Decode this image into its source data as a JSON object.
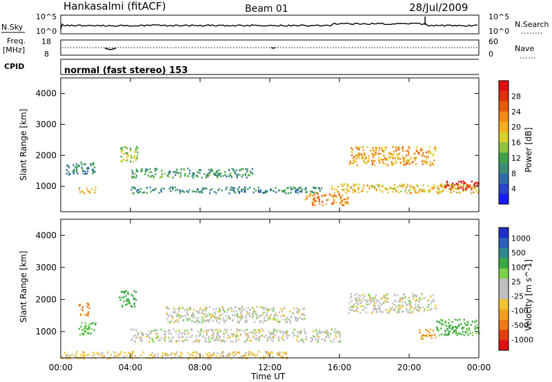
{
  "header": {
    "station": "Hankasalmi (fitACF)",
    "beam": "Beam 01",
    "date": "28/Jul/2009"
  },
  "noise_panel": {
    "left_label": "N.Sky",
    "right_label": "N.Search",
    "left_ticks": [
      "10^5",
      "10^0"
    ],
    "right_ticks": [
      "10^5",
      "10^0"
    ]
  },
  "freq_panel": {
    "left_label_1": "Freq.",
    "left_label_2": "[MHz]",
    "left_ticks": [
      "18",
      "8"
    ],
    "right_label": "Nave",
    "right_ticks": [
      "60",
      "0"
    ]
  },
  "cpid": {
    "label": "CPID",
    "mode": "normal (fast stereo) 153"
  },
  "x_axis": {
    "label": "Time UT",
    "ticks": [
      "00:00",
      "04:00",
      "08:00",
      "12:00",
      "16:00",
      "20:00",
      "00:00"
    ]
  },
  "chart_data": [
    {
      "type": "heatmap",
      "panel": "power",
      "ylabel": "Slant Range [km]",
      "yticks": [
        1000,
        2000,
        3000,
        4000
      ],
      "ylim": [
        180,
        4500
      ],
      "xlim_hours": [
        0,
        24
      ],
      "colorbar": {
        "label": "Power [dB]",
        "ticks": [
          "4",
          "8",
          "12",
          "16",
          "20",
          "24",
          "28"
        ],
        "colors": [
          "#1b1bff",
          "#2a43c8",
          "#2f6fa6",
          "#3a8c74",
          "#3fa24a",
          "#8fc23d",
          "#d8d02a",
          "#f5b01e",
          "#f08a14",
          "#e65a10",
          "#e03010",
          "#e01010"
        ]
      },
      "echo_regions": [
        {
          "t_start": 0.3,
          "t_end": 2.0,
          "range_km": [
            1400,
            1800
          ],
          "power_db": 8
        },
        {
          "t_start": 1.0,
          "t_end": 2.0,
          "range_km": [
            800,
            1000
          ],
          "power_db": 18
        },
        {
          "t_start": 3.3,
          "t_end": 4.4,
          "range_km": [
            1800,
            2300
          ],
          "power_db": 14
        },
        {
          "t_start": 4.0,
          "t_end": 11.0,
          "range_km": [
            1300,
            1600
          ],
          "power_db": 10
        },
        {
          "t_start": 4.0,
          "t_end": 15.0,
          "range_km": [
            800,
            1000
          ],
          "power_db": 8
        },
        {
          "t_start": 14.0,
          "t_end": 16.5,
          "range_km": [
            400,
            800
          ],
          "power_db": 22
        },
        {
          "t_start": 15.5,
          "t_end": 24.0,
          "range_km": [
            800,
            1100
          ],
          "power_db": 18
        },
        {
          "t_start": 16.5,
          "t_end": 21.5,
          "range_km": [
            1700,
            2300
          ],
          "power_db": 20
        },
        {
          "t_start": 22.0,
          "t_end": 24.0,
          "range_km": [
            900,
            1200
          ],
          "power_db": 28
        }
      ]
    },
    {
      "type": "heatmap",
      "panel": "velocity",
      "ylabel": "Slant Range [km]",
      "yticks": [
        1000,
        2000,
        3000,
        4000
      ],
      "ylim": [
        180,
        4500
      ],
      "xlim_hours": [
        0,
        24
      ],
      "colorbar": {
        "label": "Velocity [m s^-1]",
        "ticks": [
          "1000",
          "500",
          "100",
          "25",
          "-25",
          "-100",
          "-500",
          "-1000"
        ],
        "colors": [
          "#2030c8",
          "#2a60b8",
          "#2f8a90",
          "#3aaa40",
          "#7ad04a",
          "#bfbfbf",
          "#bfbfbf",
          "#f2c430",
          "#f0a020",
          "#ee7a18",
          "#e04010",
          "#e01010"
        ]
      },
      "echo_regions": [
        {
          "t_start": 1.0,
          "t_end": 2.0,
          "range_km": [
            900,
            1300
          ],
          "velocity": 150
        },
        {
          "t_start": 1.0,
          "t_end": 1.6,
          "range_km": [
            1500,
            1900
          ],
          "velocity": -300
        },
        {
          "t_start": 3.3,
          "t_end": 4.3,
          "range_km": [
            1800,
            2300
          ],
          "velocity": 200
        },
        {
          "t_start": 4.0,
          "t_end": 16.0,
          "range_km": [
            700,
            1100
          ],
          "velocity": 0
        },
        {
          "t_start": 6.0,
          "t_end": 14.0,
          "range_km": [
            1300,
            1800
          ],
          "velocity": 0
        },
        {
          "t_start": 16.5,
          "t_end": 21.5,
          "range_km": [
            1600,
            2200
          ],
          "velocity": 0
        },
        {
          "t_start": 21.5,
          "t_end": 24.0,
          "range_km": [
            900,
            1400
          ],
          "velocity": 150
        },
        {
          "t_start": 20.5,
          "t_end": 21.5,
          "range_km": [
            800,
            1100
          ],
          "velocity": -200
        },
        {
          "t_start": 0.0,
          "t_end": 13.0,
          "range_km": [
            180,
            400
          ],
          "velocity": -60
        }
      ]
    }
  ]
}
